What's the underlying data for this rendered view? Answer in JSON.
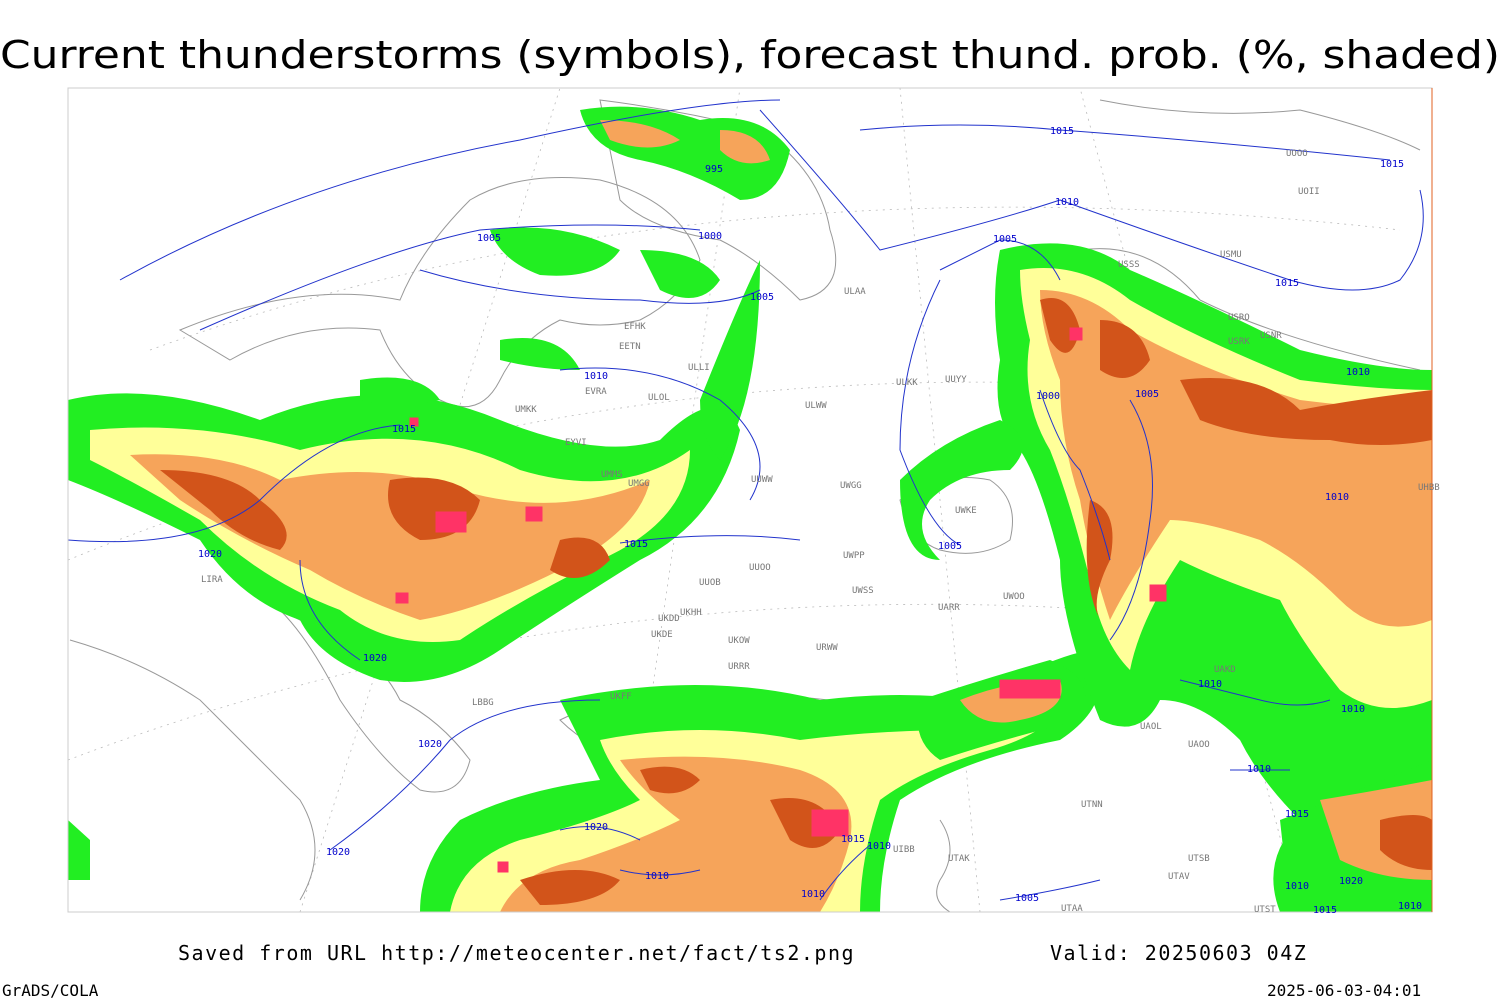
{
  "header": {
    "title": "Current thunderstorms (symbols), forecast thund. prob. (%, shaded)"
  },
  "footer": {
    "saved": "Saved from URL http://meteocenter.net/fact/ts2.png",
    "valid": "Valid: 20250603 04Z",
    "software": "GrADS/COLA",
    "timestamp": "2025-06-03-04:01"
  },
  "isobars": [
    "1015",
    "995",
    "1015",
    "1010",
    "1005",
    "1000",
    "1005",
    "1015",
    "1005",
    "1010",
    "1010",
    "1000",
    "1005",
    "1015",
    "1010",
    "1020",
    "1015",
    "1005",
    "1020",
    "1010",
    "1010",
    "1020",
    "1010",
    "1015",
    "1020",
    "1015",
    "1010",
    "1020",
    "1010",
    "1010",
    "1020",
    "1010",
    "1005",
    "1015",
    "1010"
  ],
  "stations": [
    "EFHK",
    "EETN",
    "ULLI",
    "EVRA",
    "ULOL",
    "UMKK",
    "EYVI",
    "UMMS",
    "UMGG",
    "ULAA",
    "ULKK",
    "UUYY",
    "ULWW",
    "UUWW",
    "UWGG",
    "UWKE",
    "UWPP",
    "UUOO",
    "UUOB",
    "UWSS",
    "UKHH",
    "UKDD",
    "UKDE",
    "UKOW",
    "URWW",
    "UARR",
    "UWOO",
    "URRR",
    "LIRA",
    "LBBG",
    "UKFF",
    "UTNN",
    "UTAK",
    "UTSB",
    "UTAV",
    "UTAA",
    "UTST",
    "UAOL",
    "UAOO",
    "UAKD",
    "USMU",
    "USRO",
    "USRK",
    "USNR",
    "UOOO",
    "UOII",
    "USSS",
    "UHBB",
    "UIBB"
  ]
}
